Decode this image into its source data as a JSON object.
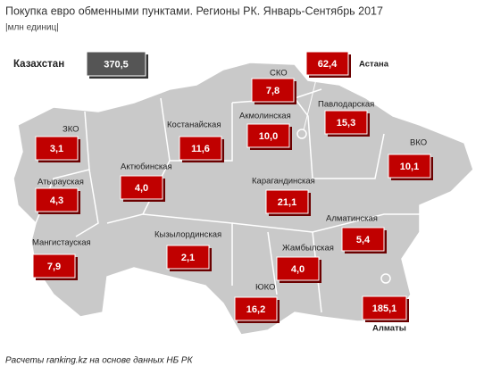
{
  "header": {
    "title": "Покупка евро обменными пунктами. Регионы РК. Январь-Сентябрь 2017",
    "subtitle": "|млн единиц|"
  },
  "total": {
    "name": "Казахстан",
    "value": "370,5"
  },
  "regions": [
    {
      "name": "СКО",
      "value": "7,8"
    },
    {
      "name": "Астана",
      "value": "62,4"
    },
    {
      "name": "Акмолинская",
      "value": "10,0"
    },
    {
      "name": "Павлодарская",
      "value": "15,3"
    },
    {
      "name": "ЗКО",
      "value": "3,1"
    },
    {
      "name": "Костанайская",
      "value": "11,6"
    },
    {
      "name": "ВКО",
      "value": "10,1"
    },
    {
      "name": "Атырауская",
      "value": "4,3"
    },
    {
      "name": "Актюбинская",
      "value": "4,0"
    },
    {
      "name": "Карагандинская",
      "value": "21,1"
    },
    {
      "name": "Алматинская",
      "value": "5,4"
    },
    {
      "name": "Мангистауская",
      "value": "7,9"
    },
    {
      "name": "Кызылординская",
      "value": "2,1"
    },
    {
      "name": "Жамбылская",
      "value": "4,0"
    },
    {
      "name": "ЮКО",
      "value": "16,2"
    },
    {
      "name": "Алматы",
      "value": "185,1"
    }
  ],
  "footer": "Расчеты ranking.kz на основе данных НБ РК"
}
